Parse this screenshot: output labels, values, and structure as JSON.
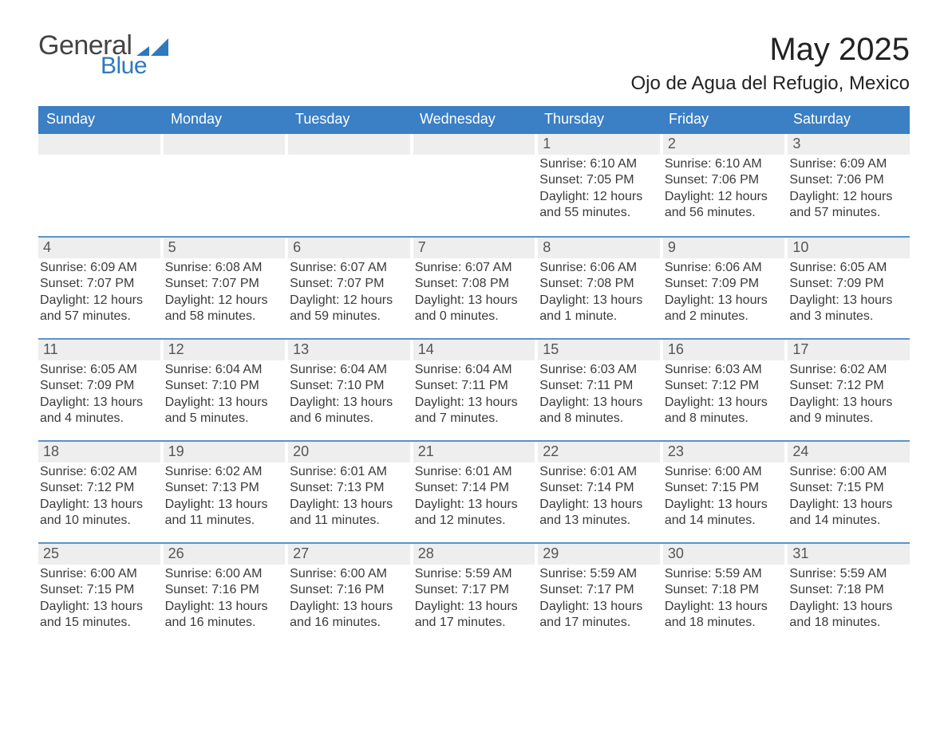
{
  "brand": {
    "word1": "General",
    "word2": "Blue",
    "mark_color": "#2f79bd"
  },
  "title": "May 2025",
  "location": "Ojo de Agua del Refugio, Mexico",
  "colors": {
    "header_blue": "#3b7fc4",
    "row_sep_blue": "#5a93c9",
    "cell_grey": "#eeeeee",
    "background": "#ffffff",
    "text": "#2a2a2a"
  },
  "typography": {
    "body_fontsize_pt": 12,
    "title_fontsize_pt": 30,
    "location_fontsize_pt": 18,
    "dow_fontsize_pt": 14
  },
  "layout": {
    "columns": 7,
    "rows": 5,
    "first_weekday": "Sunday",
    "blank_leading_cells": 4
  },
  "days_of_week": [
    "Sunday",
    "Monday",
    "Tuesday",
    "Wednesday",
    "Thursday",
    "Friday",
    "Saturday"
  ],
  "weeks": [
    [
      null,
      null,
      null,
      null,
      {
        "n": "1",
        "sunrise": "Sunrise: 6:10 AM",
        "sunset": "Sunset: 7:05 PM",
        "daylight": "Daylight: 12 hours and 55 minutes."
      },
      {
        "n": "2",
        "sunrise": "Sunrise: 6:10 AM",
        "sunset": "Sunset: 7:06 PM",
        "daylight": "Daylight: 12 hours and 56 minutes."
      },
      {
        "n": "3",
        "sunrise": "Sunrise: 6:09 AM",
        "sunset": "Sunset: 7:06 PM",
        "daylight": "Daylight: 12 hours and 57 minutes."
      }
    ],
    [
      {
        "n": "4",
        "sunrise": "Sunrise: 6:09 AM",
        "sunset": "Sunset: 7:07 PM",
        "daylight": "Daylight: 12 hours and 57 minutes."
      },
      {
        "n": "5",
        "sunrise": "Sunrise: 6:08 AM",
        "sunset": "Sunset: 7:07 PM",
        "daylight": "Daylight: 12 hours and 58 minutes."
      },
      {
        "n": "6",
        "sunrise": "Sunrise: 6:07 AM",
        "sunset": "Sunset: 7:07 PM",
        "daylight": "Daylight: 12 hours and 59 minutes."
      },
      {
        "n": "7",
        "sunrise": "Sunrise: 6:07 AM",
        "sunset": "Sunset: 7:08 PM",
        "daylight": "Daylight: 13 hours and 0 minutes."
      },
      {
        "n": "8",
        "sunrise": "Sunrise: 6:06 AM",
        "sunset": "Sunset: 7:08 PM",
        "daylight": "Daylight: 13 hours and 1 minute."
      },
      {
        "n": "9",
        "sunrise": "Sunrise: 6:06 AM",
        "sunset": "Sunset: 7:09 PM",
        "daylight": "Daylight: 13 hours and 2 minutes."
      },
      {
        "n": "10",
        "sunrise": "Sunrise: 6:05 AM",
        "sunset": "Sunset: 7:09 PM",
        "daylight": "Daylight: 13 hours and 3 minutes."
      }
    ],
    [
      {
        "n": "11",
        "sunrise": "Sunrise: 6:05 AM",
        "sunset": "Sunset: 7:09 PM",
        "daylight": "Daylight: 13 hours and 4 minutes."
      },
      {
        "n": "12",
        "sunrise": "Sunrise: 6:04 AM",
        "sunset": "Sunset: 7:10 PM",
        "daylight": "Daylight: 13 hours and 5 minutes."
      },
      {
        "n": "13",
        "sunrise": "Sunrise: 6:04 AM",
        "sunset": "Sunset: 7:10 PM",
        "daylight": "Daylight: 13 hours and 6 minutes."
      },
      {
        "n": "14",
        "sunrise": "Sunrise: 6:04 AM",
        "sunset": "Sunset: 7:11 PM",
        "daylight": "Daylight: 13 hours and 7 minutes."
      },
      {
        "n": "15",
        "sunrise": "Sunrise: 6:03 AM",
        "sunset": "Sunset: 7:11 PM",
        "daylight": "Daylight: 13 hours and 8 minutes."
      },
      {
        "n": "16",
        "sunrise": "Sunrise: 6:03 AM",
        "sunset": "Sunset: 7:12 PM",
        "daylight": "Daylight: 13 hours and 8 minutes."
      },
      {
        "n": "17",
        "sunrise": "Sunrise: 6:02 AM",
        "sunset": "Sunset: 7:12 PM",
        "daylight": "Daylight: 13 hours and 9 minutes."
      }
    ],
    [
      {
        "n": "18",
        "sunrise": "Sunrise: 6:02 AM",
        "sunset": "Sunset: 7:12 PM",
        "daylight": "Daylight: 13 hours and 10 minutes."
      },
      {
        "n": "19",
        "sunrise": "Sunrise: 6:02 AM",
        "sunset": "Sunset: 7:13 PM",
        "daylight": "Daylight: 13 hours and 11 minutes."
      },
      {
        "n": "20",
        "sunrise": "Sunrise: 6:01 AM",
        "sunset": "Sunset: 7:13 PM",
        "daylight": "Daylight: 13 hours and 11 minutes."
      },
      {
        "n": "21",
        "sunrise": "Sunrise: 6:01 AM",
        "sunset": "Sunset: 7:14 PM",
        "daylight": "Daylight: 13 hours and 12 minutes."
      },
      {
        "n": "22",
        "sunrise": "Sunrise: 6:01 AM",
        "sunset": "Sunset: 7:14 PM",
        "daylight": "Daylight: 13 hours and 13 minutes."
      },
      {
        "n": "23",
        "sunrise": "Sunrise: 6:00 AM",
        "sunset": "Sunset: 7:15 PM",
        "daylight": "Daylight: 13 hours and 14 minutes."
      },
      {
        "n": "24",
        "sunrise": "Sunrise: 6:00 AM",
        "sunset": "Sunset: 7:15 PM",
        "daylight": "Daylight: 13 hours and 14 minutes."
      }
    ],
    [
      {
        "n": "25",
        "sunrise": "Sunrise: 6:00 AM",
        "sunset": "Sunset: 7:15 PM",
        "daylight": "Daylight: 13 hours and 15 minutes."
      },
      {
        "n": "26",
        "sunrise": "Sunrise: 6:00 AM",
        "sunset": "Sunset: 7:16 PM",
        "daylight": "Daylight: 13 hours and 16 minutes."
      },
      {
        "n": "27",
        "sunrise": "Sunrise: 6:00 AM",
        "sunset": "Sunset: 7:16 PM",
        "daylight": "Daylight: 13 hours and 16 minutes."
      },
      {
        "n": "28",
        "sunrise": "Sunrise: 5:59 AM",
        "sunset": "Sunset: 7:17 PM",
        "daylight": "Daylight: 13 hours and 17 minutes."
      },
      {
        "n": "29",
        "sunrise": "Sunrise: 5:59 AM",
        "sunset": "Sunset: 7:17 PM",
        "daylight": "Daylight: 13 hours and 17 minutes."
      },
      {
        "n": "30",
        "sunrise": "Sunrise: 5:59 AM",
        "sunset": "Sunset: 7:18 PM",
        "daylight": "Daylight: 13 hours and 18 minutes."
      },
      {
        "n": "31",
        "sunrise": "Sunrise: 5:59 AM",
        "sunset": "Sunset: 7:18 PM",
        "daylight": "Daylight: 13 hours and 18 minutes."
      }
    ]
  ]
}
